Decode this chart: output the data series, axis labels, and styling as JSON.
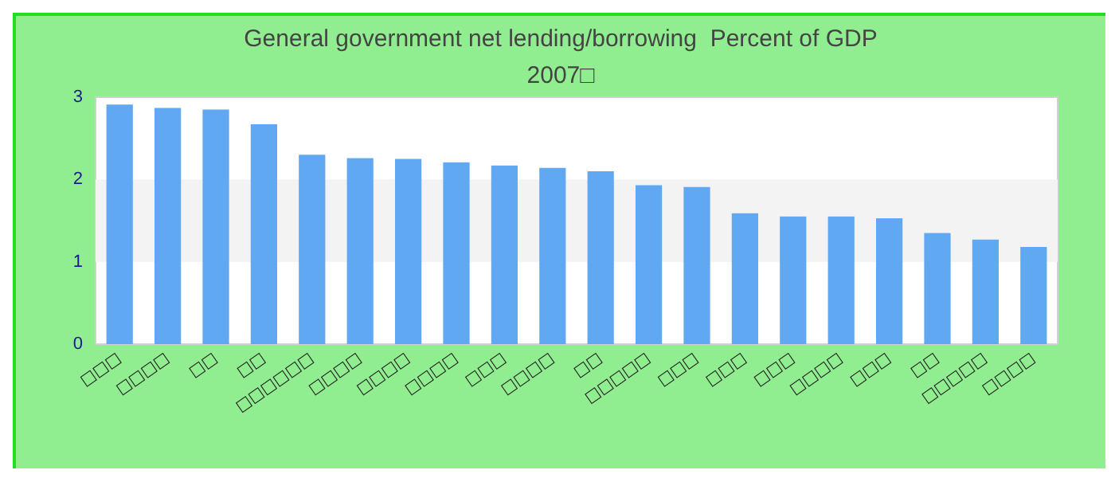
{
  "chart_data": {
    "type": "bar",
    "title": "General government net lending/borrowing  Percent of GDP",
    "subtitle": "2007□",
    "categories": [
      "□□□",
      "□□□□",
      "□□",
      "□□",
      "□□□□□□",
      "□□□□",
      "□□□□",
      "□□□□",
      "□□□",
      "□□□□",
      "□□",
      "□□□□□",
      "□□□",
      "□□□",
      "□□□",
      "□□□□",
      "□□□",
      "□□",
      "□□□□□",
      "□□□□"
    ],
    "values": [
      2.91,
      2.87,
      2.85,
      2.67,
      2.3,
      2.26,
      2.25,
      2.21,
      2.17,
      2.14,
      2.1,
      1.93,
      1.91,
      1.59,
      1.55,
      1.55,
      1.53,
      1.35,
      1.27,
      1.18
    ],
    "color": "#61a8f3",
    "ylim": [
      0,
      3
    ],
    "yticks": [
      0,
      1,
      2,
      3
    ],
    "bands": [
      {
        "axis": "y",
        "from": 1,
        "to": 2,
        "color": "#f3f3f3"
      }
    ]
  }
}
